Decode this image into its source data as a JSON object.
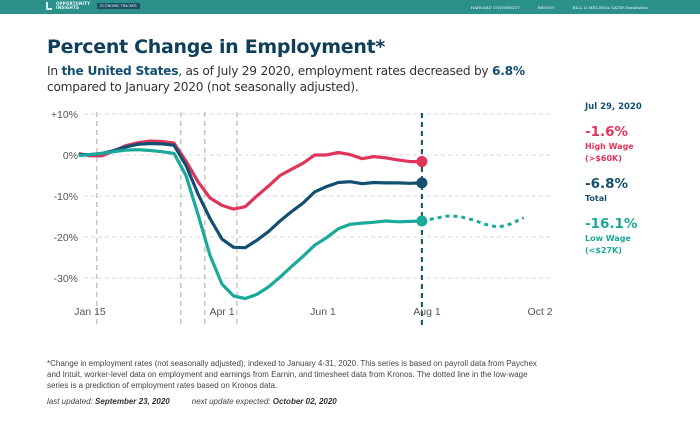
{
  "header": {
    "logo_line1": "OPPORTUNITY",
    "logo_line2": "INSIGHTS",
    "tracker_tag": "ECONOMIC TRACKER",
    "partners": [
      "HARVARD UNIVERSITY",
      "BROWN",
      "BILL & MELINDA GATES foundation"
    ]
  },
  "title": "Percent Change in Employment*",
  "subtitle": {
    "prefix": "In ",
    "region": "the United States",
    "middle": ", as of July 29 2020, employment rates decreased by ",
    "value": "6.8%",
    "suffix": " compared to January 2020 (not seasonally adjusted)."
  },
  "panel": {
    "date": "Jul 29, 2020",
    "items": [
      {
        "value": "-1.6%",
        "label1": "High Wage",
        "label2": "(>$60K)",
        "color": "#e0355b"
      },
      {
        "value": "-6.8%",
        "label1": "Total",
        "label2": "",
        "color": "#144f72"
      },
      {
        "value": "-16.1%",
        "label1": "Low Wage",
        "label2": "(<$27K)",
        "color": "#1ba99a"
      }
    ]
  },
  "footnote": "*Change in employment rates (not seasonally adjusted), indexed to January 4-31, 2020. This series is based on payroll data from Paychex and Intuit, worker-level data on employment and earnings from Earnin, and timesheet data from Kronos. The dotted line in the low-wage series is a prediction of employment rates based on Kronos data.",
  "updated": {
    "last_label": "last updated: ",
    "last_value": "September 23, 2020",
    "next_label": "next update expected: ",
    "next_value": "October 02, 2020"
  },
  "chart_data": {
    "type": "line",
    "title": "Percent Change in Employment*",
    "xlabel": "",
    "ylabel": "",
    "x_unit": "days since Jan 1, 2020",
    "xlim": [
      8,
      276
    ],
    "ylim": [
      -38,
      10
    ],
    "y_ticks": [
      10,
      0,
      -10,
      -20,
      -30
    ],
    "y_tick_labels": [
      "+10%",
      "0%",
      "-10%",
      "-20%",
      "-30%"
    ],
    "x_ticks": [
      14,
      91,
      152,
      213,
      275
    ],
    "x_tick_labels": [
      "Jan 15",
      "Apr 1",
      "Jun 1",
      "Aug 1",
      "Oct 2"
    ],
    "reference_lines_x": [
      18,
      67,
      81,
      100,
      210
    ],
    "highlight_line_x": 210,
    "grid": true,
    "series": [
      {
        "name": "High Wage (>$60K)",
        "color": "#e0355b",
        "x": [
          8,
          14,
          21,
          28,
          35,
          42,
          49,
          56,
          63,
          70,
          77,
          84,
          91,
          98,
          105,
          112,
          119,
          126,
          133,
          140,
          147,
          154,
          161,
          168,
          175,
          182,
          189,
          196,
          203,
          210
        ],
        "y": [
          0.3,
          -0.2,
          -0.2,
          1.0,
          2.3,
          3.0,
          3.4,
          3.3,
          2.9,
          -1.5,
          -6.5,
          -10.5,
          -12.3,
          -13.2,
          -12.6,
          -10,
          -7.6,
          -5,
          -3.5,
          -2,
          0,
          0,
          0.6,
          0.1,
          -0.9,
          -0.4,
          -0.7,
          -1.2,
          -1.6,
          -1.6
        ]
      },
      {
        "name": "Total",
        "color": "#144f72",
        "x": [
          8,
          14,
          21,
          28,
          35,
          42,
          49,
          56,
          63,
          70,
          77,
          84,
          91,
          98,
          105,
          112,
          119,
          126,
          133,
          140,
          147,
          154,
          161,
          168,
          175,
          182,
          189,
          196,
          203,
          210
        ],
        "y": [
          0.1,
          0.1,
          0.4,
          1.1,
          2.0,
          2.6,
          2.8,
          2.7,
          2.4,
          -2.5,
          -9.5,
          -15.5,
          -20.5,
          -22.5,
          -22.6,
          -20.8,
          -18.7,
          -16.1,
          -13.8,
          -11.7,
          -9,
          -7.7,
          -6.7,
          -6.5,
          -7,
          -6.7,
          -6.8,
          -6.8,
          -6.9,
          -6.8
        ]
      },
      {
        "name": "Low Wage (<$27K)",
        "color": "#1ba99a",
        "x": [
          8,
          14,
          21,
          28,
          35,
          42,
          49,
          56,
          63,
          70,
          77,
          84,
          91,
          98,
          105,
          112,
          119,
          126,
          133,
          140,
          147,
          154,
          161,
          168,
          175,
          182,
          189,
          196,
          203,
          210
        ],
        "y": [
          -0.1,
          0.1,
          0.4,
          0.8,
          1.2,
          1.3,
          1.1,
          0.8,
          0.4,
          -5,
          -14.5,
          -24.5,
          -31.5,
          -34.4,
          -35.0,
          -34.0,
          -32.2,
          -29.8,
          -27.2,
          -24.7,
          -22,
          -20.2,
          -18,
          -16.9,
          -16.6,
          -16.4,
          -16.1,
          -16.3,
          -16.2,
          -16.1
        ]
      },
      {
        "name": "Low Wage prediction (Kronos)",
        "color": "#1ba99a",
        "dashed": true,
        "x": [
          210,
          217,
          224,
          231,
          238,
          245,
          252,
          259,
          266
        ],
        "y": [
          -16.1,
          -15.5,
          -14.9,
          -15.0,
          -15.8,
          -16.9,
          -17.6,
          -16.8,
          -15.3
        ]
      }
    ],
    "endpoint_markers": [
      {
        "x": 210,
        "y": -1.6,
        "color": "#e0355b"
      },
      {
        "x": 210,
        "y": -6.8,
        "color": "#144f72"
      },
      {
        "x": 210,
        "y": -16.1,
        "color": "#1ba99a"
      }
    ]
  }
}
